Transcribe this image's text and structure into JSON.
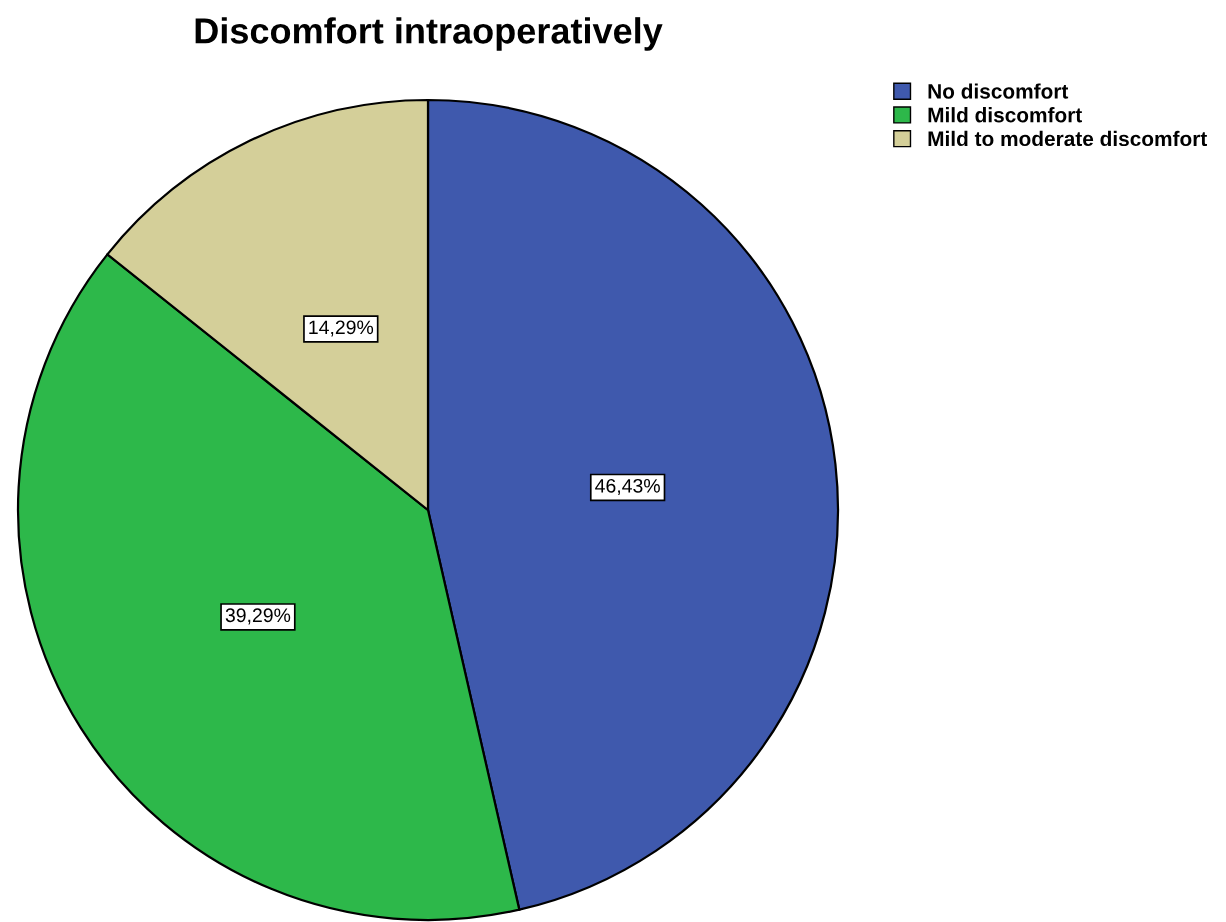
{
  "chart_data": {
    "type": "pie",
    "title": "Discomfort intraoperatively",
    "categories": [
      "No discomfort",
      "Mild discomfort",
      "Mild to moderate discomfort"
    ],
    "values": [
      46.43,
      39.29,
      14.29
    ],
    "value_labels": [
      "46,43%",
      "39,29%",
      "14,29%"
    ],
    "colors": [
      "#3f59ad",
      "#2db84a",
      "#d4cf99"
    ],
    "legend": "top right"
  }
}
